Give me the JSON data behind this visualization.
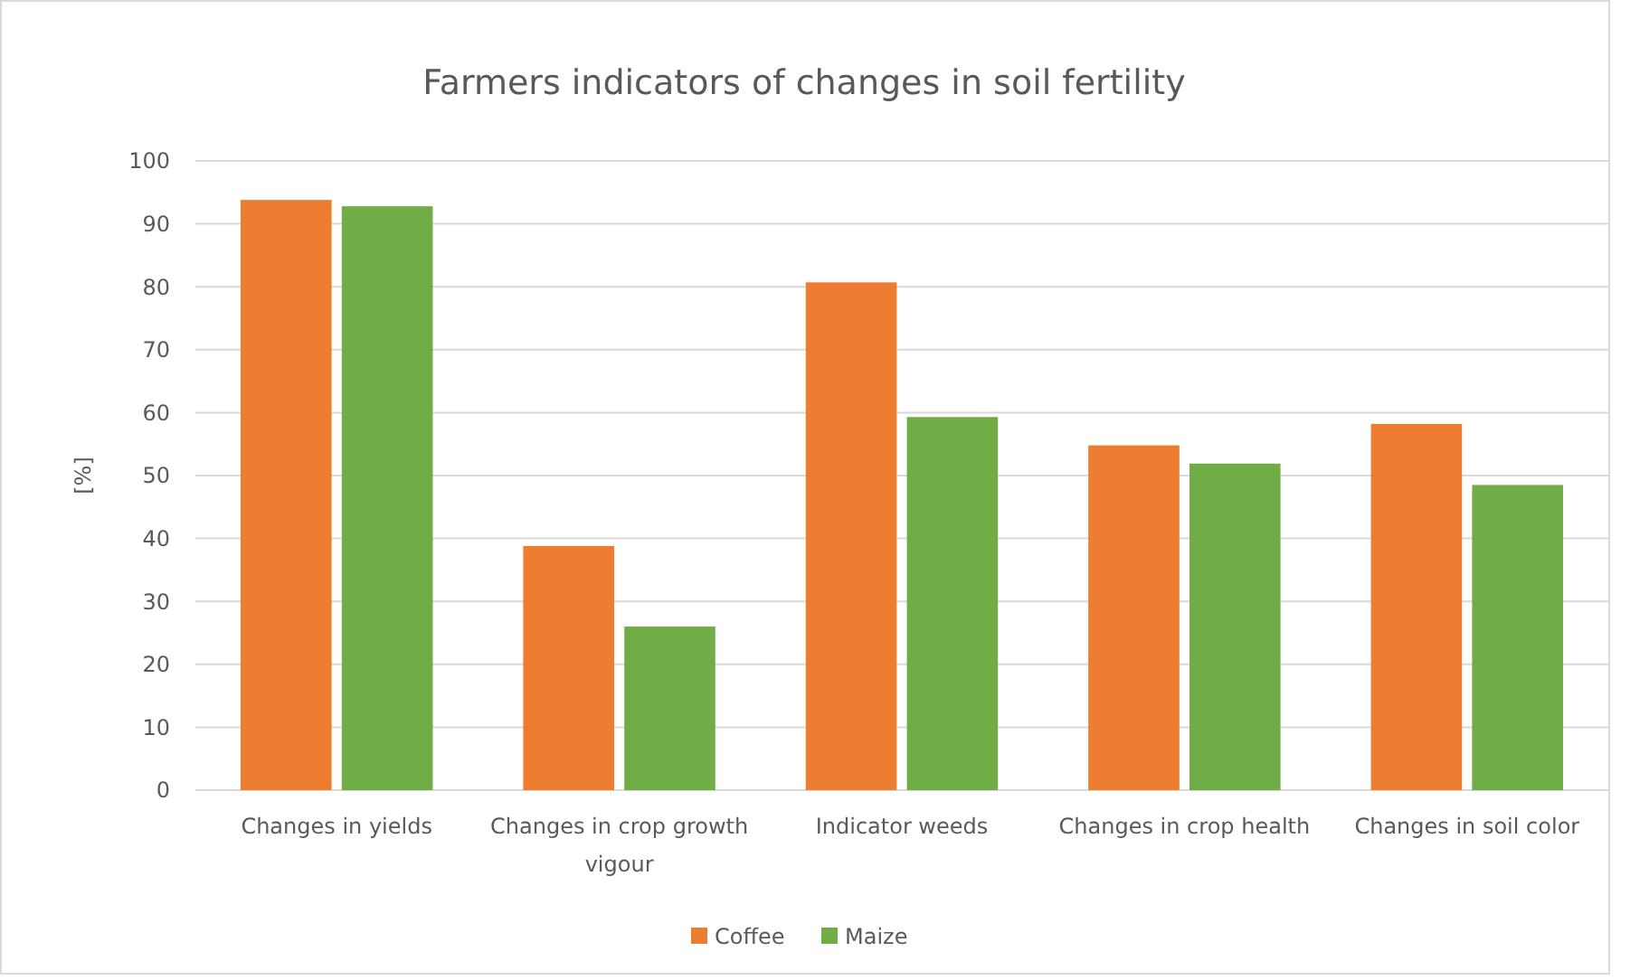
{
  "chart_data": {
    "type": "bar",
    "title": "Farmers indicators of changes in soil fertility",
    "ylabel": "[%]",
    "categories": [
      "Changes in yields",
      "Changes in crop growth vigour",
      "Indicator weeds",
      "Changes in crop health",
      "Changes in soil color"
    ],
    "series": [
      {
        "name": "Coffee",
        "color": "#ed7d31",
        "values": [
          93.8,
          38.8,
          80.7,
          54.8,
          58.2
        ]
      },
      {
        "name": "Maize",
        "color": "#70ad47",
        "values": [
          92.8,
          26.0,
          59.3,
          51.9,
          48.5
        ]
      }
    ],
    "ylim": [
      0,
      100
    ],
    "yticks": [
      0,
      10,
      20,
      30,
      40,
      50,
      60,
      70,
      80,
      90,
      100
    ],
    "grid": "y",
    "legend": "bottom"
  }
}
